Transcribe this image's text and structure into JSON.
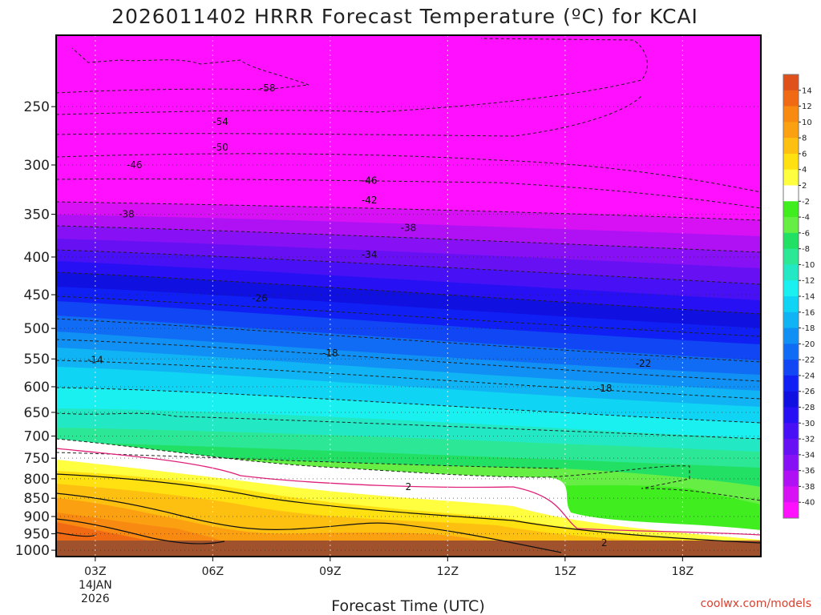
{
  "chart_data": {
    "type": "heatmap",
    "title": "2026011402 HRRR Forecast Temperature (ºC) for KCAI",
    "xlabel": "Forecast Time (UTC)",
    "ylabel": "",
    "credit": "coolwx.com/models",
    "x_ticks": [
      {
        "hour": 3,
        "label": "03Z",
        "sub1": "14JAN",
        "sub2": "2026"
      },
      {
        "hour": 6,
        "label": "06Z"
      },
      {
        "hour": 9,
        "label": "09Z"
      },
      {
        "hour": 12,
        "label": "12Z"
      },
      {
        "hour": 15,
        "label": "15Z"
      },
      {
        "hour": 18,
        "label": "18Z"
      }
    ],
    "xlim": [
      2,
      20
    ],
    "y_ticks": [
      250,
      300,
      350,
      400,
      450,
      500,
      550,
      600,
      650,
      700,
      750,
      800,
      850,
      900,
      950,
      1000
    ],
    "ylim": [
      200,
      1020
    ],
    "y_scale": "log-pressure",
    "grid": true,
    "colorbar": {
      "levels": [
        14,
        12,
        10,
        8,
        6,
        4,
        2,
        -2,
        -4,
        -6,
        -8,
        -10,
        -12,
        -14,
        -16,
        -18,
        -20,
        -22,
        -24,
        -26,
        -28,
        -30,
        -32,
        -34,
        -36,
        -38,
        -40
      ],
      "colors": [
        "#e0501a",
        "#f06a14",
        "#f88a12",
        "#fba010",
        "#fdc010",
        "#ffe010",
        "#ffff40",
        "#ffffff",
        "#40ee20",
        "#66ee44",
        "#22e064",
        "#2ce896",
        "#22e8c4",
        "#1af0f0",
        "#10d4f4",
        "#10b4f4",
        "#1090f4",
        "#106cf4",
        "#1046f4",
        "#1020f4",
        "#1010e0",
        "#2810f4",
        "#4810f4",
        "#6810f4",
        "#8810f4",
        "#b010f4",
        "#d810f4",
        "#ff10ff"
      ],
      "labels": [
        "14",
        "12",
        "10",
        "8",
        "6",
        "4",
        "2",
        "-2",
        "-4",
        "-6",
        "-8",
        "-10",
        "-12",
        "-14",
        "-16",
        "-18",
        "-20",
        "-22",
        "-24",
        "-26",
        "-28",
        "-30",
        "-32",
        "-34",
        "-36",
        "-38",
        "-40"
      ]
    },
    "contour_labels": [
      {
        "text": "-58",
        "hour": 7.4,
        "p": 236
      },
      {
        "text": "-54",
        "hour": 6.2,
        "p": 262
      },
      {
        "text": "-50",
        "hour": 6.2,
        "p": 284
      },
      {
        "text": "-46",
        "hour": 4.0,
        "p": 300
      },
      {
        "text": "-46",
        "hour": 10.0,
        "p": 315
      },
      {
        "text": "-42",
        "hour": 10.0,
        "p": 335
      },
      {
        "text": "-38",
        "hour": 3.8,
        "p": 350
      },
      {
        "text": "-38",
        "hour": 11.0,
        "p": 365
      },
      {
        "text": "-34",
        "hour": 10.0,
        "p": 397
      },
      {
        "text": "-26",
        "hour": 7.2,
        "p": 455
      },
      {
        "text": "-18",
        "hour": 9.0,
        "p": 540
      },
      {
        "text": "-14",
        "hour": 3.0,
        "p": 552
      },
      {
        "text": "-22",
        "hour": 17.0,
        "p": 558
      },
      {
        "text": "-18",
        "hour": 16.0,
        "p": 603
      },
      {
        "text": "2",
        "hour": 11.0,
        "p": 820
      },
      {
        "text": "2",
        "hour": 16.0,
        "p": 977
      }
    ]
  }
}
